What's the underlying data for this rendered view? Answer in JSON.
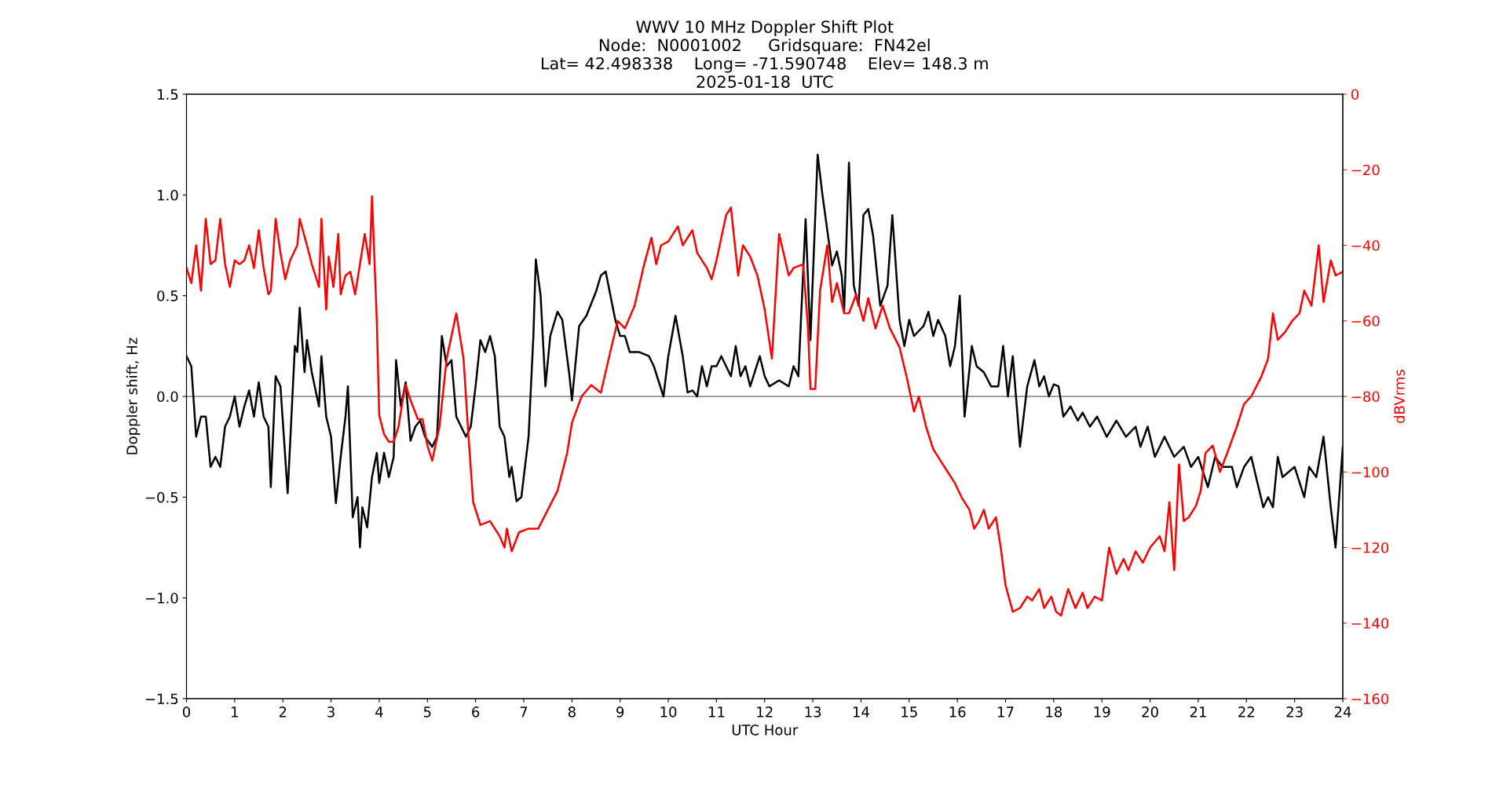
{
  "chart_data": {
    "type": "line",
    "title": "WWV 10 MHz Doppler Shift Plot\nNode:  N0001002     Gridsquare:  FN42el\nLat= 42.498338    Long= -71.590748    Elev= 148.3 m\n2025-01-18  UTC",
    "xlabel": "UTC Hour",
    "ylabel": "Doppler shift, Hz",
    "y2label": "dBVrms",
    "xlim": [
      0,
      24
    ],
    "xticks": [
      0,
      1,
      2,
      3,
      4,
      5,
      6,
      7,
      8,
      9,
      10,
      11,
      12,
      13,
      14,
      15,
      16,
      17,
      18,
      19,
      20,
      21,
      22,
      23,
      24
    ],
    "ylim": [
      -1.5,
      1.5
    ],
    "yticks": [
      {
        "value": -1.5,
        "label": "−1.5"
      },
      {
        "value": -1.0,
        "label": "−1.0"
      },
      {
        "value": -0.5,
        "label": "−0.5"
      },
      {
        "value": 0,
        "label": "0.0"
      },
      {
        "value": 0.5,
        "label": "0.5"
      },
      {
        "value": 1.0,
        "label": "1.0"
      },
      {
        "value": 1.5,
        "label": "1.5"
      }
    ],
    "y2lim": [
      -160,
      0
    ],
    "y2ticks": [
      {
        "value": -160,
        "label": "−160"
      },
      {
        "value": -140,
        "label": "−140"
      },
      {
        "value": -120,
        "label": "−120"
      },
      {
        "value": -100,
        "label": "−100"
      },
      {
        "value": -80,
        "label": "−80"
      },
      {
        "value": -60,
        "label": "−60"
      },
      {
        "value": -40,
        "label": "−40"
      },
      {
        "value": -20,
        "label": "−20"
      },
      0
    ],
    "grid": false,
    "legend": false,
    "line_style": "solid",
    "marker": "none",
    "ref_lines": [
      {
        "axis": "y",
        "value": 0,
        "color": "#808080"
      }
    ],
    "series": [
      {
        "color": "#000000",
        "x": [
          0.0,
          0.1,
          0.2,
          0.3,
          0.4,
          0.5,
          0.6,
          0.7,
          0.8,
          0.9,
          1.0,
          1.1,
          1.2,
          1.3,
          1.4,
          1.5,
          1.6,
          1.7,
          1.75,
          1.85,
          1.95,
          2.1,
          2.25,
          2.3,
          2.35,
          2.45,
          2.5,
          2.6,
          2.75,
          2.8,
          2.9,
          3.0,
          3.1,
          3.2,
          3.3,
          3.35,
          3.45,
          3.55,
          3.6,
          3.65,
          3.75,
          3.85,
          3.95,
          4.0,
          4.1,
          4.2,
          4.3,
          4.35,
          4.45,
          4.55,
          4.65,
          4.75,
          4.85,
          4.95,
          5.1,
          5.2,
          5.3,
          5.4,
          5.5,
          5.6,
          5.7,
          5.8,
          5.9,
          6.0,
          6.1,
          6.2,
          6.3,
          6.4,
          6.5,
          6.6,
          6.7,
          6.75,
          6.85,
          6.95,
          7.1,
          7.2,
          7.25,
          7.35,
          7.45,
          7.55,
          7.7,
          7.8,
          7.95,
          8.0,
          8.15,
          8.3,
          8.5,
          8.6,
          8.7,
          8.8,
          8.9,
          9.0,
          9.1,
          9.2,
          9.4,
          9.6,
          9.7,
          9.9,
          10.0,
          10.15,
          10.3,
          10.4,
          10.5,
          10.6,
          10.7,
          10.8,
          10.9,
          11.0,
          11.1,
          11.2,
          11.3,
          11.4,
          11.5,
          11.6,
          11.7,
          11.9,
          12.0,
          12.1,
          12.3,
          12.5,
          12.6,
          12.7,
          12.85,
          12.95,
          13.1,
          13.2,
          13.4,
          13.5,
          13.6,
          13.65,
          13.75,
          13.85,
          13.95,
          14.05,
          14.15,
          14.25,
          14.4,
          14.55,
          14.65,
          14.8,
          14.9,
          15.0,
          15.1,
          15.3,
          15.4,
          15.5,
          15.6,
          15.75,
          15.85,
          15.95,
          16.05,
          16.15,
          16.3,
          16.4,
          16.55,
          16.7,
          16.85,
          16.95,
          17.05,
          17.15,
          17.3,
          17.45,
          17.6,
          17.7,
          17.8,
          17.9,
          18.0,
          18.1,
          18.2,
          18.35,
          18.5,
          18.6,
          18.75,
          18.9,
          19.0,
          19.1,
          19.3,
          19.5,
          19.7,
          19.8,
          19.95,
          20.1,
          20.3,
          20.5,
          20.7,
          20.85,
          21.0,
          21.2,
          21.35,
          21.5,
          21.7,
          21.8,
          21.95,
          22.1,
          22.35,
          22.45,
          22.55,
          22.65,
          22.75,
          23.0,
          23.2,
          23.3,
          23.45,
          23.6,
          23.75,
          23.85,
          24.0
        ],
        "values": [
          0.2,
          0.15,
          -0.2,
          -0.1,
          -0.1,
          -0.35,
          -0.3,
          -0.35,
          -0.15,
          -0.1,
          0.0,
          -0.15,
          -0.05,
          0.03,
          -0.1,
          0.07,
          -0.1,
          -0.15,
          -0.45,
          0.1,
          0.05,
          -0.48,
          0.25,
          0.22,
          0.44,
          0.12,
          0.28,
          0.12,
          -0.05,
          0.2,
          -0.1,
          -0.2,
          -0.53,
          -0.3,
          -0.1,
          0.05,
          -0.6,
          -0.5,
          -0.75,
          -0.55,
          -0.65,
          -0.4,
          -0.28,
          -0.43,
          -0.28,
          -0.4,
          -0.3,
          0.18,
          -0.05,
          0.07,
          -0.22,
          -0.15,
          -0.12,
          -0.2,
          -0.25,
          -0.2,
          0.3,
          0.15,
          0.18,
          -0.1,
          -0.15,
          -0.2,
          -0.15,
          0.05,
          0.28,
          0.22,
          0.3,
          0.2,
          -0.15,
          -0.2,
          -0.4,
          -0.35,
          -0.52,
          -0.5,
          -0.2,
          0.3,
          0.68,
          0.5,
          0.05,
          0.3,
          0.42,
          0.38,
          0.1,
          -0.02,
          0.35,
          0.4,
          0.52,
          0.6,
          0.62,
          0.5,
          0.38,
          0.3,
          0.3,
          0.22,
          0.22,
          0.2,
          0.15,
          0.0,
          0.2,
          0.4,
          0.2,
          0.02,
          0.03,
          0.0,
          0.15,
          0.05,
          0.15,
          0.15,
          0.2,
          0.15,
          0.1,
          0.25,
          0.1,
          0.15,
          0.05,
          0.2,
          0.1,
          0.05,
          0.08,
          0.05,
          0.15,
          0.1,
          0.88,
          0.28,
          1.2,
          1.0,
          0.65,
          0.72,
          0.6,
          0.42,
          1.16,
          0.55,
          0.45,
          0.9,
          0.93,
          0.8,
          0.45,
          0.55,
          0.9,
          0.38,
          0.25,
          0.38,
          0.3,
          0.35,
          0.42,
          0.3,
          0.38,
          0.3,
          0.15,
          0.25,
          0.5,
          -0.1,
          0.25,
          0.15,
          0.12,
          0.05,
          0.05,
          0.25,
          0.0,
          0.2,
          -0.25,
          0.05,
          0.18,
          0.05,
          0.1,
          0.0,
          0.06,
          0.05,
          -0.1,
          -0.05,
          -0.12,
          -0.08,
          -0.15,
          -0.1,
          -0.15,
          -0.2,
          -0.12,
          -0.2,
          -0.15,
          -0.25,
          -0.15,
          -0.3,
          -0.2,
          -0.3,
          -0.25,
          -0.35,
          -0.3,
          -0.45,
          -0.3,
          -0.35,
          -0.35,
          -0.45,
          -0.35,
          -0.3,
          -0.55,
          -0.5,
          -0.55,
          -0.3,
          -0.4,
          -0.35,
          -0.5,
          -0.35,
          -0.4,
          -0.2,
          -0.55,
          -0.75,
          -0.25
        ]
      },
      {
        "color": "#ff0000",
        "axis": "y2",
        "x": [
          0.0,
          0.1,
          0.2,
          0.3,
          0.4,
          0.5,
          0.6,
          0.7,
          0.8,
          0.9,
          1.0,
          1.1,
          1.2,
          1.3,
          1.4,
          1.5,
          1.6,
          1.7,
          1.75,
          1.85,
          1.95,
          2.05,
          2.15,
          2.3,
          2.35,
          2.5,
          2.6,
          2.75,
          2.8,
          2.9,
          2.95,
          3.05,
          3.15,
          3.2,
          3.3,
          3.4,
          3.5,
          3.6,
          3.7,
          3.8,
          3.85,
          3.95,
          4.0,
          4.1,
          4.2,
          4.3,
          4.4,
          4.5,
          4.55,
          4.65,
          4.8,
          4.9,
          5.0,
          5.1,
          5.25,
          5.4,
          5.6,
          5.75,
          5.85,
          5.95,
          6.1,
          6.3,
          6.5,
          6.6,
          6.65,
          6.75,
          6.9,
          7.1,
          7.3,
          7.5,
          7.7,
          7.9,
          8.0,
          8.2,
          8.4,
          8.6,
          8.8,
          8.95,
          9.1,
          9.3,
          9.5,
          9.65,
          9.75,
          9.85,
          10.0,
          10.2,
          10.3,
          10.5,
          10.6,
          10.8,
          10.9,
          11.0,
          11.2,
          11.3,
          11.45,
          11.55,
          11.7,
          11.85,
          12.0,
          12.15,
          12.3,
          12.5,
          12.6,
          12.8,
          12.9,
          12.95,
          13.05,
          13.15,
          13.3,
          13.4,
          13.5,
          13.65,
          13.75,
          13.9,
          14.05,
          14.15,
          14.3,
          14.45,
          14.6,
          14.8,
          14.95,
          15.1,
          15.2,
          15.35,
          15.5,
          15.65,
          15.8,
          15.95,
          16.1,
          16.25,
          16.35,
          16.45,
          16.55,
          16.65,
          16.8,
          16.9,
          17.0,
          17.15,
          17.3,
          17.45,
          17.55,
          17.7,
          17.8,
          17.95,
          18.05,
          18.15,
          18.3,
          18.45,
          18.6,
          18.7,
          18.85,
          19.0,
          19.15,
          19.3,
          19.45,
          19.55,
          19.7,
          19.85,
          20.0,
          20.2,
          20.3,
          20.4,
          20.5,
          20.6,
          20.7,
          20.8,
          20.95,
          21.05,
          21.15,
          21.3,
          21.45,
          21.6,
          21.8,
          21.95,
          22.1,
          22.3,
          22.45,
          22.55,
          22.65,
          22.8,
          22.95,
          23.1,
          23.2,
          23.35,
          23.5,
          23.6,
          23.75,
          23.85,
          24.0
        ],
        "values": [
          -46,
          -50,
          -40,
          -52,
          -33,
          -45,
          -44,
          -33,
          -45,
          -51,
          -44,
          -45,
          -44,
          -40,
          -46,
          -36,
          -46,
          -53,
          -52,
          -33,
          -42,
          -49,
          -44,
          -40,
          -33,
          -40,
          -45,
          -51,
          -33,
          -57,
          -43,
          -51,
          -37,
          -53,
          -48,
          -47,
          -53,
          -45,
          -37,
          -45,
          -27,
          -60,
          -85,
          -90,
          -92,
          -92,
          -88,
          -80,
          -77,
          -81,
          -86,
          -86,
          -93,
          -97,
          -88,
          -70,
          -58,
          -70,
          -90,
          -108,
          -114,
          -113,
          -117,
          -120,
          -115,
          -121,
          -116,
          -115,
          -115,
          -110,
          -105,
          -95,
          -87,
          -80,
          -77,
          -79,
          -68,
          -60,
          -62,
          -56,
          -45,
          -38,
          -45,
          -40,
          -39,
          -35,
          -40,
          -36,
          -42,
          -46,
          -49,
          -44,
          -32,
          -30,
          -48,
          -40,
          -43,
          -48,
          -57,
          -70,
          -37,
          -48,
          -46,
          -45,
          -62,
          -78,
          -78,
          -52,
          -40,
          -55,
          -50,
          -58,
          -58,
          -53,
          -60,
          -54,
          -62,
          -56,
          -62,
          -67,
          -75,
          -84,
          -80,
          -88,
          -94,
          -97,
          -100,
          -103,
          -107,
          -110,
          -115,
          -113,
          -110,
          -115,
          -112,
          -120,
          -130,
          -137,
          -136,
          -133,
          -134,
          -131,
          -136,
          -133,
          -137,
          -138,
          -131,
          -136,
          -132,
          -136,
          -133,
          -134,
          -120,
          -127,
          -123,
          -126,
          -121,
          -124,
          -120,
          -117,
          -121,
          -108,
          -126,
          -98,
          -113,
          -112,
          -109,
          -105,
          -95,
          -93,
          -100,
          -95,
          -88,
          -82,
          -80,
          -75,
          -70,
          -58,
          -65,
          -63,
          -60,
          -58,
          -52,
          -56,
          -40,
          -55,
          -44,
          -48,
          -47
        ]
      }
    ]
  }
}
